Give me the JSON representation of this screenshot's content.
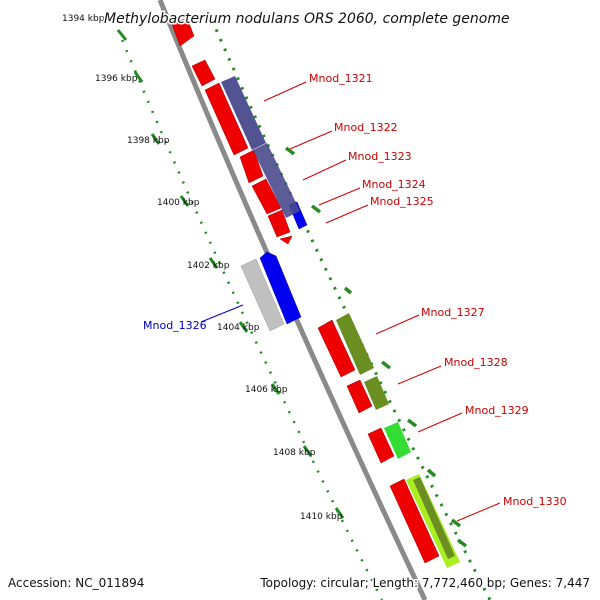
{
  "title": "Methylobacterium nodulans ORS 2060, complete genome",
  "footer": {
    "accession": "Accession: NC_011894",
    "summary": "Topology: circular; Length: 7,772,460 bp; Genes: 7,447"
  },
  "ticks": [
    "1394 kbp",
    "1396 kbp",
    "1398 kbp",
    "1400 kbp",
    "1402 kbp",
    "1404 kbp",
    "1406 kbp",
    "1408 kbp",
    "1410 kbp"
  ],
  "gene_labels": [
    {
      "text": "Mnod_1321",
      "color": "#cc0000"
    },
    {
      "text": "Mnod_1322",
      "color": "#cc0000"
    },
    {
      "text": "Mnod_1323",
      "color": "#cc0000"
    },
    {
      "text": "Mnod_1324",
      "color": "#cc0000"
    },
    {
      "text": "Mnod_1325",
      "color": "#cc0000"
    },
    {
      "text": "Mnod_1326",
      "color": "#0000cc"
    },
    {
      "text": "Mnod_1327",
      "color": "#cc0000"
    },
    {
      "text": "Mnod_1328",
      "color": "#cc0000"
    },
    {
      "text": "Mnod_1329",
      "color": "#cc0000"
    },
    {
      "text": "Mnod_1330",
      "color": "#cc0000"
    }
  ],
  "colors": {
    "backbone": "#8a8a8a",
    "gene_red": "#ee0000",
    "gene_blue": "#0000ee",
    "gene_grey": "#c0c0c0",
    "cog_purple": "#4a4a8e",
    "cog_olive": "#6b8e23",
    "cog_green": "#33dd33",
    "cog_yellowgreen": "#aaee22",
    "gc_dots": "#228b22"
  }
}
